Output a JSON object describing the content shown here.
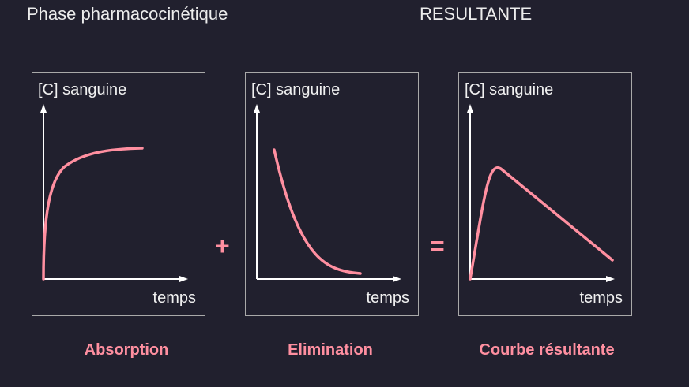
{
  "headings": {
    "left": "Phase pharmacocinétique",
    "right": "RESULTANTE"
  },
  "panels": [
    {
      "id": "absorption",
      "y_label": "[C] sanguine",
      "x_label": "temps",
      "caption": "Absorption",
      "curve": "absorption"
    },
    {
      "id": "elimination",
      "y_label": "[C] sanguine",
      "x_label": "temps",
      "caption": "Elimination",
      "curve": "elimination"
    },
    {
      "id": "resultante",
      "y_label": "[C] sanguine",
      "x_label": "temps",
      "caption": "Courbe résultante",
      "curve": "resultante"
    }
  ],
  "operators": {
    "plus": "+",
    "equals": "="
  },
  "colors": {
    "background": "#21202e",
    "curve": "#ff8fa0",
    "axis": "#ffffff",
    "frame": "#a9a9a9",
    "text": "#ececec"
  }
}
